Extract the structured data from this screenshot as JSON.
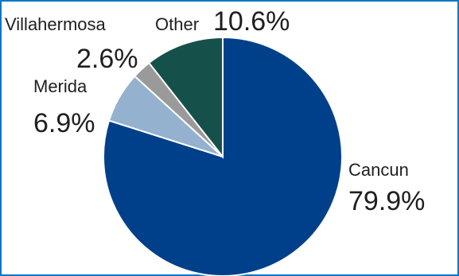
{
  "chart_data": {
    "type": "pie",
    "series": [
      {
        "name": "Cancun",
        "value": 79.9,
        "value_label": "79.9%",
        "color": "#00408a"
      },
      {
        "name": "Merida",
        "value": 6.9,
        "value_label": "6.9%",
        "color": "#94b1cf"
      },
      {
        "name": "Villahermosa",
        "value": 2.6,
        "value_label": "2.6%",
        "color": "#9a9a9a"
      },
      {
        "name": "Other",
        "value": 10.6,
        "value_label": "10.6%",
        "color": "#16504a"
      }
    ]
  },
  "style": {
    "frame_color": "#0b77c7",
    "slice_border": "#ffffff"
  }
}
